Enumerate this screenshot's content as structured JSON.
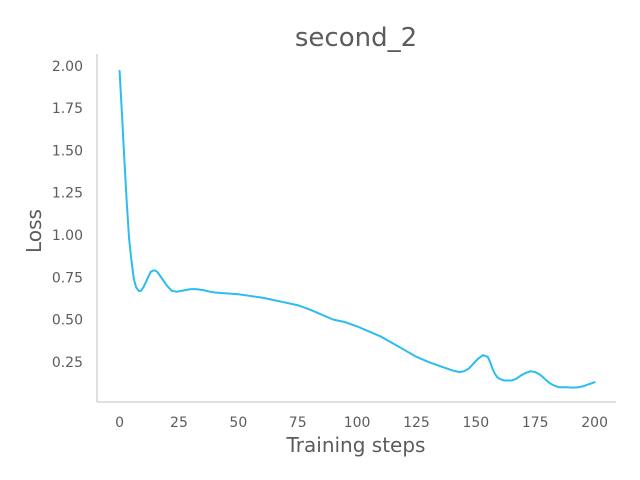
{
  "chart_data": {
    "type": "line",
    "title": "second_2",
    "xlabel": "Training steps",
    "ylabel": "Loss",
    "xlim": [
      -9.5,
      209
    ],
    "ylim": [
      0.013,
      2.07
    ],
    "xticks": [
      0,
      25,
      50,
      75,
      100,
      125,
      150,
      175,
      200
    ],
    "xtick_labels": [
      "0",
      "25",
      "50",
      "75",
      "100",
      "125",
      "150",
      "175",
      "200"
    ],
    "yticks": [
      0.25,
      0.5,
      0.75,
      1.0,
      1.25,
      1.5,
      1.75,
      2.0
    ],
    "ytick_labels": [
      "0.25",
      "0.50",
      "0.75",
      "1.00",
      "1.25",
      "1.50",
      "1.75",
      "2.00"
    ],
    "grid": false,
    "legend": "none",
    "series": [
      {
        "color": "#2bbcf0",
        "x": [
          0,
          1,
          2,
          3,
          4,
          5,
          6,
          7,
          8,
          9,
          10,
          11,
          12,
          13,
          14,
          15,
          16,
          17,
          18,
          19,
          20,
          22,
          24,
          26,
          28,
          30,
          32,
          35,
          38,
          40,
          45,
          50,
          55,
          60,
          65,
          70,
          75,
          80,
          85,
          90,
          95,
          100,
          105,
          110,
          115,
          120,
          125,
          130,
          135,
          140,
          143,
          145,
          147,
          149,
          151,
          153,
          155,
          156,
          157,
          158,
          159,
          160,
          161,
          162,
          163,
          165,
          167,
          169,
          171,
          173,
          175,
          177,
          179,
          181,
          183,
          185,
          188,
          191,
          193,
          195,
          197,
          199,
          200
        ],
        "y": [
          1.97,
          1.72,
          1.45,
          1.2,
          0.98,
          0.85,
          0.74,
          0.69,
          0.67,
          0.67,
          0.69,
          0.72,
          0.75,
          0.78,
          0.79,
          0.79,
          0.78,
          0.76,
          0.74,
          0.72,
          0.7,
          0.67,
          0.665,
          0.67,
          0.675,
          0.68,
          0.68,
          0.675,
          0.665,
          0.66,
          0.655,
          0.65,
          0.64,
          0.63,
          0.615,
          0.6,
          0.585,
          0.56,
          0.53,
          0.5,
          0.485,
          0.46,
          0.43,
          0.4,
          0.36,
          0.32,
          0.28,
          0.25,
          0.225,
          0.2,
          0.19,
          0.195,
          0.21,
          0.24,
          0.27,
          0.29,
          0.28,
          0.25,
          0.21,
          0.18,
          0.16,
          0.15,
          0.145,
          0.14,
          0.14,
          0.14,
          0.15,
          0.17,
          0.185,
          0.195,
          0.19,
          0.175,
          0.15,
          0.125,
          0.11,
          0.1,
          0.1,
          0.098,
          0.1,
          0.105,
          0.115,
          0.125,
          0.13
        ]
      }
    ]
  }
}
